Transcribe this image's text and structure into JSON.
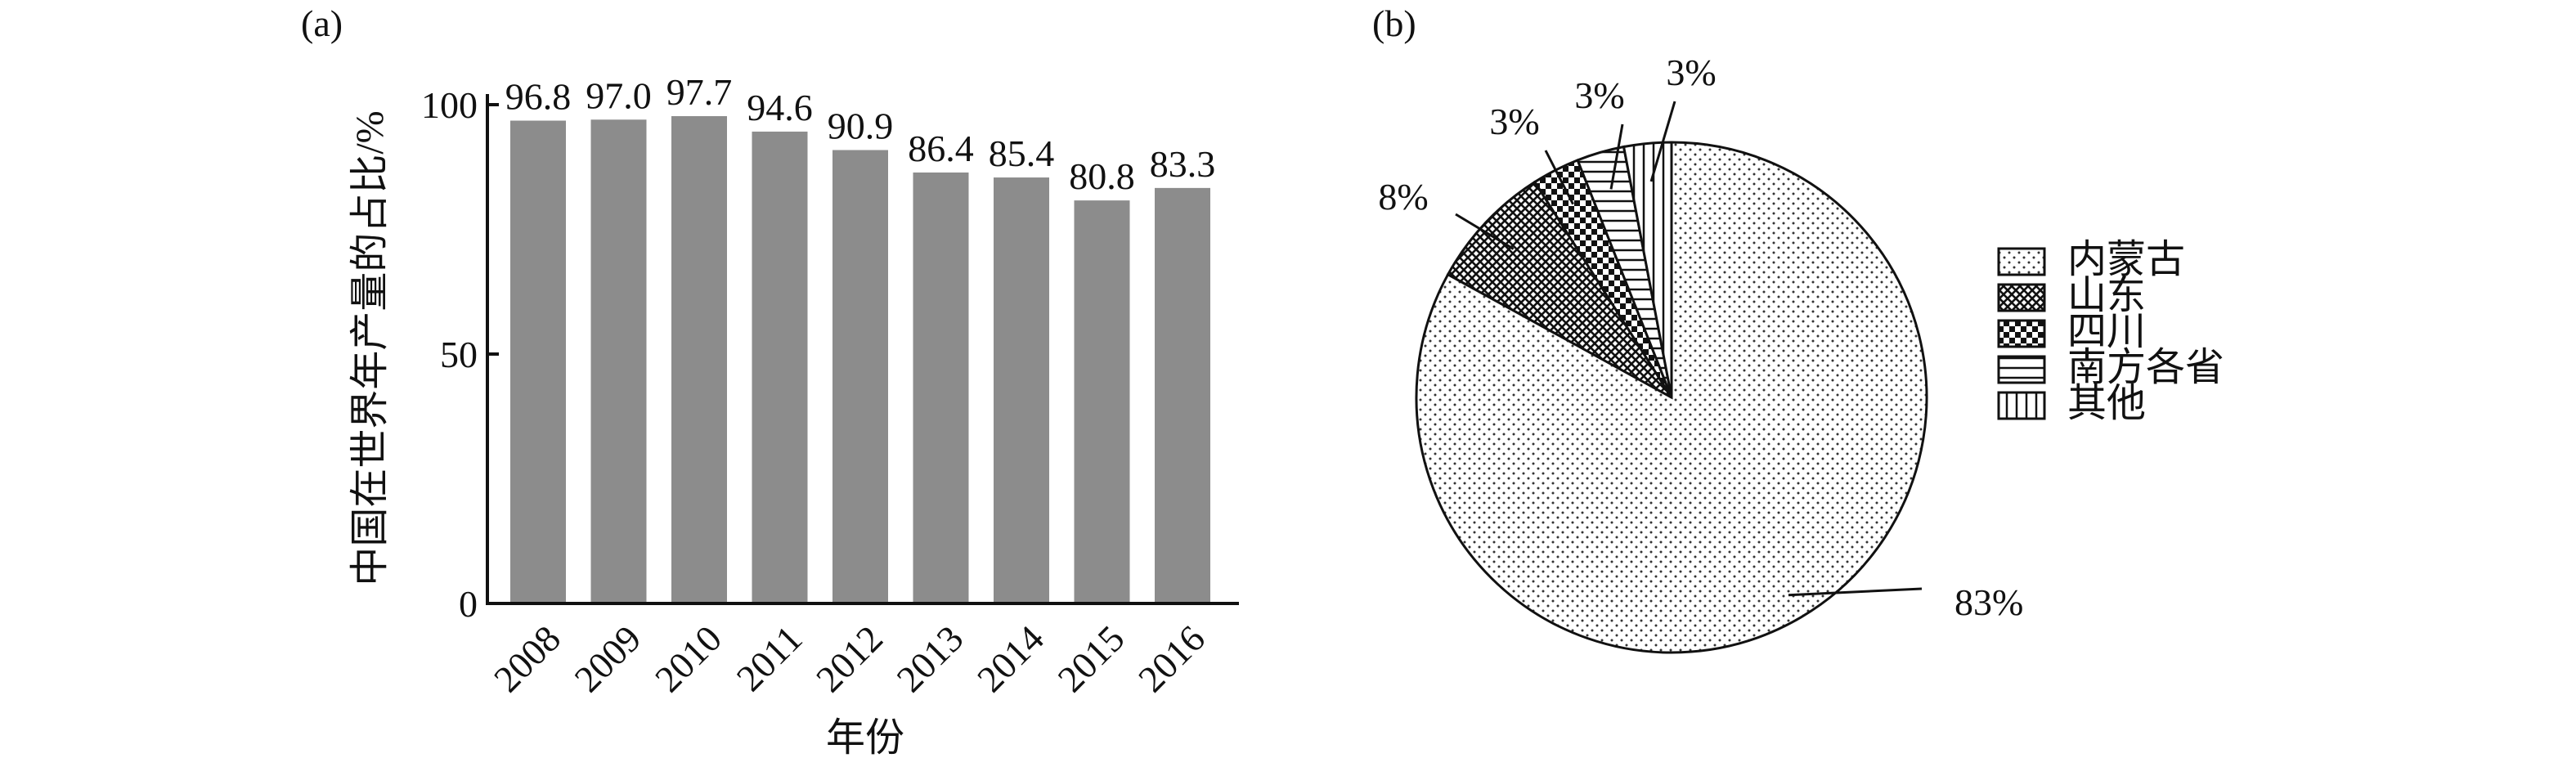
{
  "chart_data": [
    {
      "type": "bar",
      "panel_label": "(a)",
      "categories": [
        "2008",
        "2009",
        "2010",
        "2011",
        "2012",
        "2013",
        "2014",
        "2015",
        "2016"
      ],
      "values": [
        96.8,
        97.0,
        97.7,
        94.6,
        90.9,
        86.4,
        85.4,
        80.8,
        83.3
      ],
      "value_labels": [
        "96.8",
        "97.0",
        "97.7",
        "94.6",
        "90.9",
        "86.4",
        "85.4",
        "80.8",
        "83.3"
      ],
      "xlabel": "年份",
      "ylabel": "中国在世界年产量的占比/%",
      "ylim": [
        0,
        100
      ],
      "yticks": [
        "0",
        "50",
        "100"
      ],
      "bar_color": "#8c8c8c",
      "grid": false
    },
    {
      "type": "pie",
      "panel_label": "(b)",
      "labels": [
        "内蒙古",
        "山东",
        "四川",
        "南方各省",
        "其他"
      ],
      "values": [
        83,
        8,
        3,
        3,
        3
      ],
      "value_labels": [
        "83%",
        "8%",
        "3%",
        "3%",
        "3%"
      ],
      "patterns": [
        "dots",
        "crosshatch",
        "checker",
        "horizontal-lines",
        "vertical-lines"
      ],
      "legend_position": "right"
    }
  ]
}
